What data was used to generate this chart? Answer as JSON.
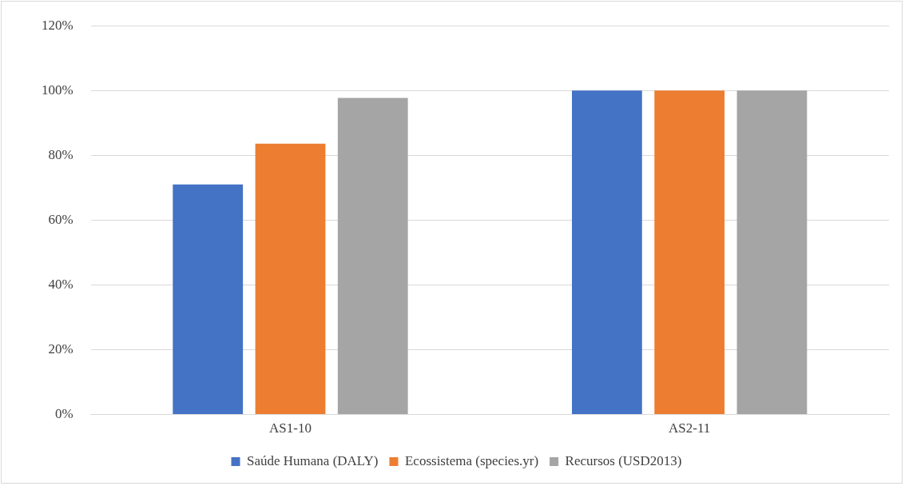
{
  "chart_data": {
    "type": "bar",
    "categories": [
      "AS1-10",
      "AS2-11"
    ],
    "series": [
      {
        "name": "Saúde Humana (DALY)",
        "color": "#4472c4",
        "values": [
          71,
          100
        ]
      },
      {
        "name": "Ecossistema (species.yr)",
        "color": "#ed7d31",
        "values": [
          83.6,
          100
        ]
      },
      {
        "name": "Recursos (USD2013)",
        "color": "#a5a5a5",
        "values": [
          97.7,
          100
        ]
      }
    ],
    "ylim": [
      0,
      120
    ],
    "yticks": [
      {
        "value": 0,
        "label": "0%"
      },
      {
        "value": 20,
        "label": "20%"
      },
      {
        "value": 40,
        "label": "40%"
      },
      {
        "value": 60,
        "label": "60%"
      },
      {
        "value": 80,
        "label": "80%"
      },
      {
        "value": 100,
        "label": "100%"
      },
      {
        "value": 120,
        "label": "120%"
      }
    ],
    "grid": "y",
    "legend": "bottom"
  }
}
